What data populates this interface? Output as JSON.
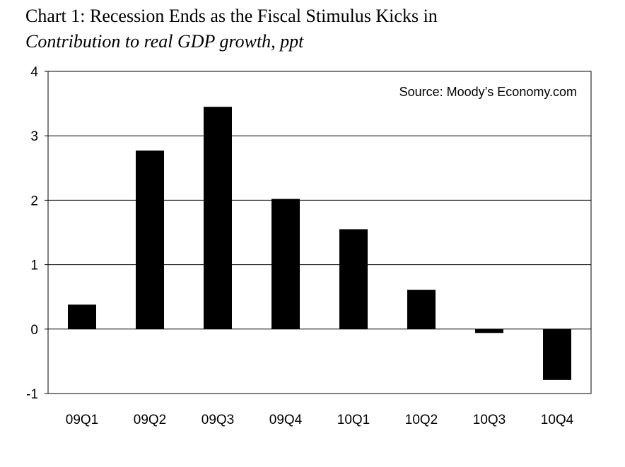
{
  "chart_data": {
    "type": "bar",
    "title": "Chart 1: Recession Ends as the Fiscal Stimulus Kicks in",
    "subtitle": "Contribution to real GDP growth, ppt",
    "annotation": "Source: Moody’s Economy.com",
    "categories": [
      "09Q1",
      "09Q2",
      "09Q3",
      "09Q4",
      "10Q1",
      "10Q2",
      "10Q3",
      "10Q4"
    ],
    "values": [
      0.38,
      2.77,
      3.45,
      2.02,
      1.55,
      0.61,
      -0.06,
      -0.79
    ],
    "ylim": [
      -1,
      4
    ],
    "yticks": [
      -1,
      0,
      1,
      2,
      3,
      4
    ],
    "grid": true,
    "legend": "none",
    "bar_color": "#000000"
  }
}
